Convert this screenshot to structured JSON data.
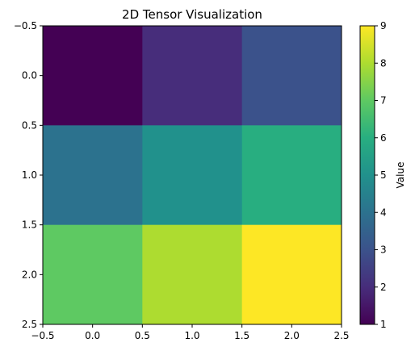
{
  "chart_data": {
    "type": "heatmap",
    "title": "2D Tensor Visualization",
    "xlabel": "",
    "ylabel": "",
    "xlim": [
      -0.5,
      2.5
    ],
    "ylim": [
      2.5,
      -0.5
    ],
    "x_ticks": [
      "-0.5",
      "0.0",
      "0.5",
      "1.0",
      "1.5",
      "2.0",
      "2.5"
    ],
    "y_ticks": [
      "-0.5",
      "0.0",
      "0.5",
      "1.0",
      "1.5",
      "2.0",
      "2.5"
    ],
    "values": [
      [
        1,
        2,
        3
      ],
      [
        4,
        5,
        6
      ],
      [
        7,
        8,
        9
      ]
    ],
    "colormap": "viridis",
    "grid": false,
    "colorbar": {
      "label": "Value",
      "range": [
        1,
        9
      ],
      "ticks": [
        "1",
        "2",
        "3",
        "4",
        "5",
        "6",
        "7",
        "8",
        "9"
      ]
    },
    "colors": {
      "1": "#440154",
      "2": "#472d7b",
      "3": "#3b528b",
      "4": "#2c728e",
      "5": "#21918c",
      "6": "#28ae80",
      "7": "#5ec962",
      "8": "#addc30",
      "9": "#fde725"
    }
  }
}
